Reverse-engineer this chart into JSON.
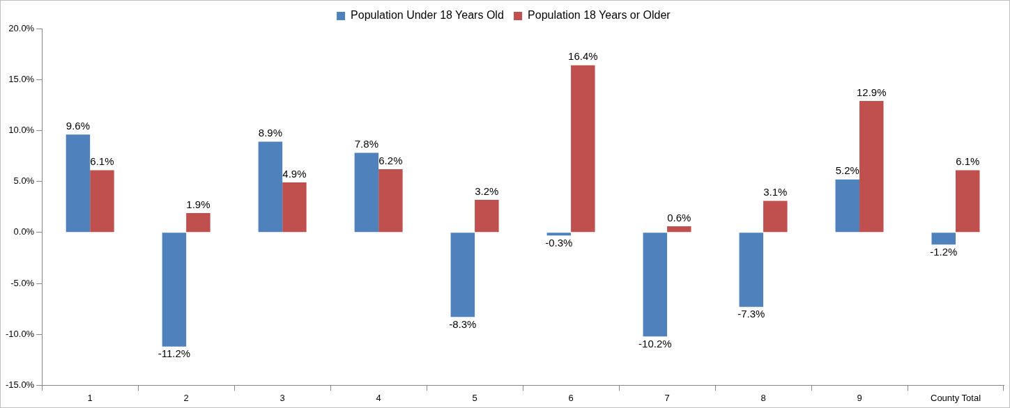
{
  "chart_data": {
    "type": "bar",
    "categories": [
      "1",
      "2",
      "3",
      "4",
      "5",
      "6",
      "7",
      "8",
      "9",
      "County Total"
    ],
    "series": [
      {
        "name": "Population Under 18 Years Old",
        "color": "#4f81bd",
        "values": [
          9.6,
          -11.2,
          8.9,
          7.8,
          -8.3,
          -0.3,
          -10.2,
          -7.3,
          5.2,
          -1.2
        ],
        "value_labels": [
          "9.6%",
          "-11.2%",
          "8.9%",
          "7.8%",
          "-8.3%",
          "-0.3%",
          "-10.2%",
          "-7.3%",
          "5.2%",
          "-1.2%"
        ]
      },
      {
        "name": "Population 18 Years or Older",
        "color": "#c0504d",
        "values": [
          6.1,
          1.9,
          4.9,
          6.2,
          3.2,
          16.4,
          0.6,
          3.1,
          12.9,
          6.1
        ],
        "value_labels": [
          "6.1%",
          "1.9%",
          "4.9%",
          "6.2%",
          "3.2%",
          "16.4%",
          "0.6%",
          "3.1%",
          "12.9%",
          "6.1%"
        ]
      }
    ],
    "ylim": [
      -15,
      20
    ],
    "yticks": [
      {
        "value": -15,
        "label": "-15.0%"
      },
      {
        "value": -10,
        "label": "-10.0%"
      },
      {
        "value": -5,
        "label": "-5.0%"
      },
      {
        "value": 0,
        "label": "0.0%"
      },
      {
        "value": 5,
        "label": "5.0%"
      },
      {
        "value": 10,
        "label": "10.0%"
      },
      {
        "value": 15,
        "label": "15.0%"
      },
      {
        "value": 20,
        "label": "20.0%"
      }
    ],
    "grid": false,
    "legend": "top"
  }
}
